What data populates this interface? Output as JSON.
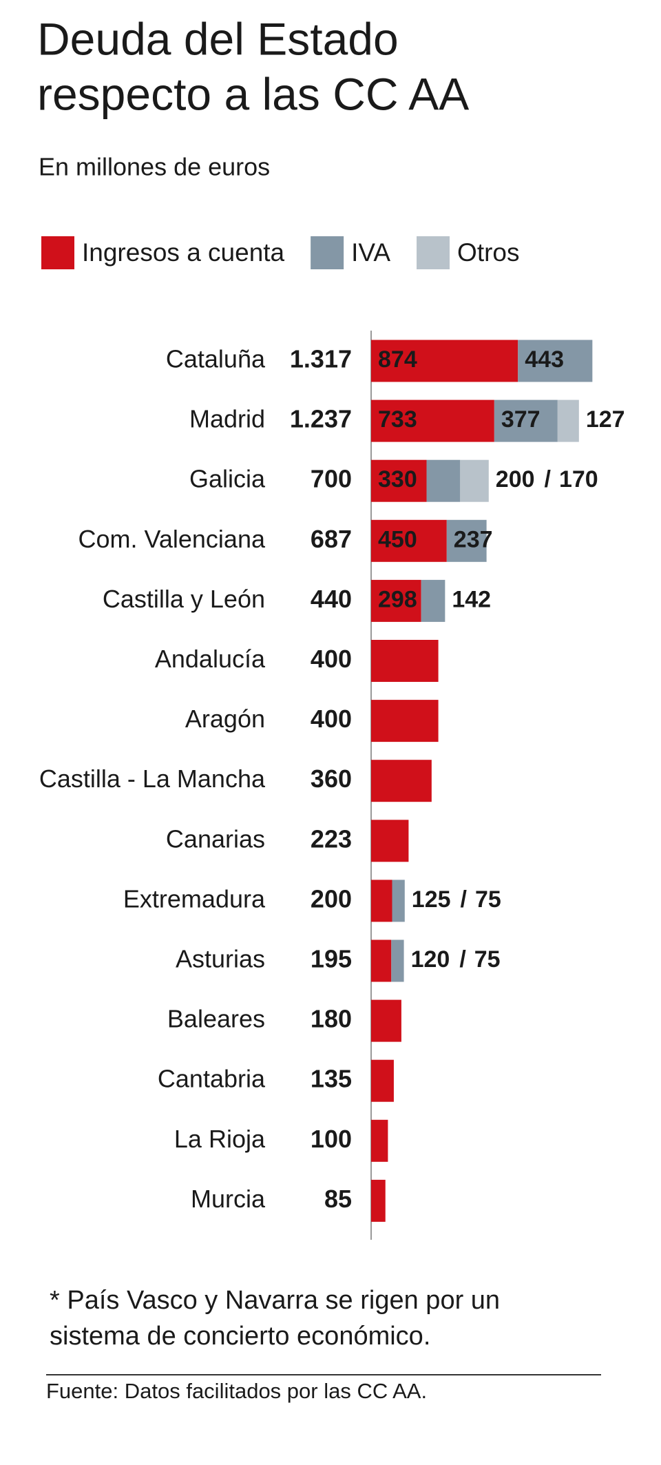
{
  "chart_data": {
    "type": "stacked-bar-horizontal",
    "title": [
      "Deuda del Estado",
      "respecto a las CC AA"
    ],
    "subtitle": "En millones de euros",
    "categories": [
      "Cataluña",
      "Madrid",
      "Galicia",
      "Com. Valenciana",
      "Castilla y León",
      "Andalucía",
      "Aragón",
      "Castilla - La Mancha",
      "Canarias",
      "Extremadura",
      "Asturias",
      "Baleares",
      "Cantabria",
      "La Rioja",
      "Murcia"
    ],
    "totals": {
      "values": [
        1317,
        1237,
        700,
        687,
        440,
        400,
        400,
        360,
        223,
        200,
        195,
        180,
        135,
        100,
        85
      ],
      "value_labels": [
        "1.317",
        "1.237",
        "700",
        "687",
        "440",
        "400",
        "400",
        "360",
        "223",
        "200",
        "195",
        "180",
        "135",
        "100",
        "85"
      ]
    },
    "series": [
      {
        "name": "Ingresos a cuenta",
        "color": "#d0101a",
        "values": [
          874,
          733,
          330,
          450,
          298,
          400,
          400,
          360,
          223,
          125,
          120,
          180,
          135,
          100,
          85
        ]
      },
      {
        "name": "IVA",
        "color": "#8497a6",
        "values": [
          443,
          377,
          200,
          237,
          142,
          null,
          null,
          null,
          null,
          75,
          75,
          null,
          null,
          null,
          null
        ]
      },
      {
        "name": "Otros",
        "color": "#b8c2ca",
        "values": [
          null,
          127,
          170,
          null,
          null,
          null,
          null,
          null,
          null,
          null,
          null,
          null,
          null,
          null,
          null
        ]
      }
    ],
    "label_separator": "/",
    "footnote": [
      "* País Vasco y Navarra se rigen por un",
      "sistema de concierto económico."
    ],
    "source": "Fuente: Datos facilitados por las CC AA."
  }
}
